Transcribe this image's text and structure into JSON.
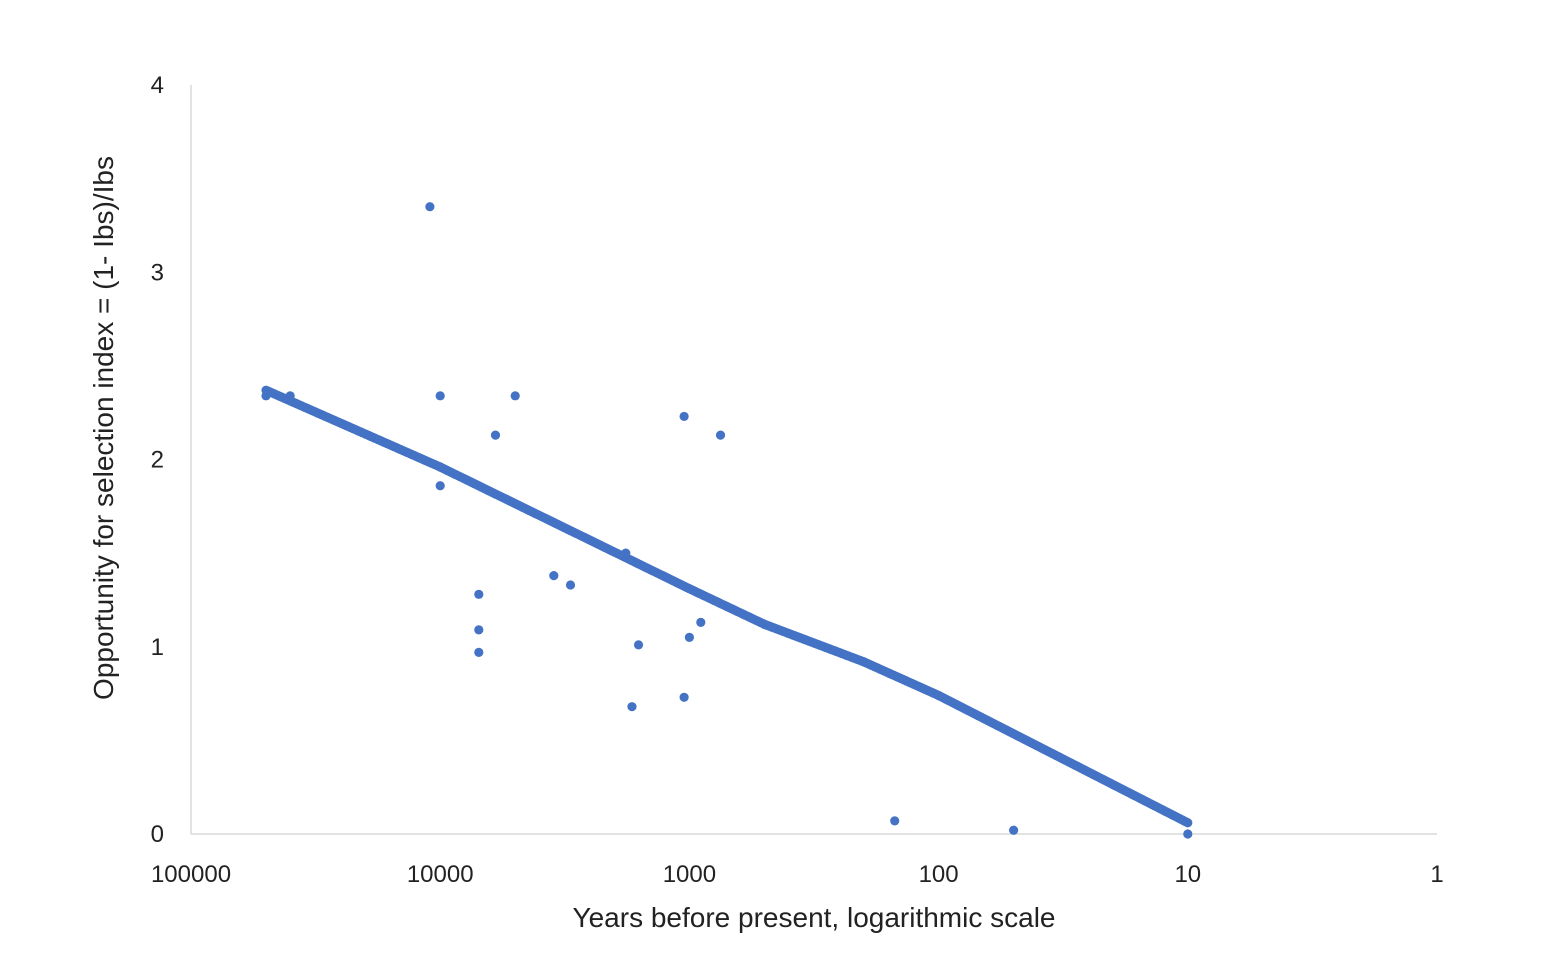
{
  "chart_data": {
    "type": "scatter",
    "title": "",
    "xlabel": "Years before present, logarithmic scale",
    "ylabel": "Opportunity for  selection index = (1- Ibs)/Ibs",
    "x_scale": "log",
    "x_reversed": true,
    "xlim": [
      100000,
      1
    ],
    "ylim": [
      0,
      4
    ],
    "x_ticks": [
      100000,
      10000,
      1000,
      100,
      10,
      1
    ],
    "x_tick_labels": [
      "100000",
      "10000",
      "1000",
      "100",
      "10",
      "1"
    ],
    "y_ticks": [
      0,
      1,
      2,
      3,
      4
    ],
    "y_tick_labels": [
      "0",
      "1",
      "2",
      "3",
      "4"
    ],
    "grid": false,
    "legend": "none",
    "colors": {
      "points": "#4472C4",
      "axis": "#d9d9d9",
      "text": "#222222"
    },
    "trend": {
      "description_points": [
        [
          50000,
          2.37
        ],
        [
          10000,
          1.96
        ],
        [
          1000,
          1.31
        ],
        [
          500,
          1.12
        ],
        [
          200,
          0.92
        ],
        [
          100,
          0.74
        ],
        [
          10,
          0.06
        ]
      ]
    },
    "series": [
      {
        "x": [
          50000,
          40000,
          11000,
          10000,
          10000,
          7000,
          7000,
          7000,
          6000,
          5000,
          3500,
          3000,
          1800,
          1700,
          1600,
          1050,
          1050,
          1000,
          900,
          750,
          150,
          50,
          10
        ],
        "y": [
          2.34,
          2.34,
          3.35,
          2.34,
          1.86,
          1.28,
          1.09,
          0.97,
          2.13,
          2.34,
          1.38,
          1.33,
          1.5,
          0.68,
          1.01,
          0.73,
          2.23,
          1.05,
          1.13,
          2.13,
          0.07,
          0.02,
          0.0
        ]
      }
    ]
  }
}
